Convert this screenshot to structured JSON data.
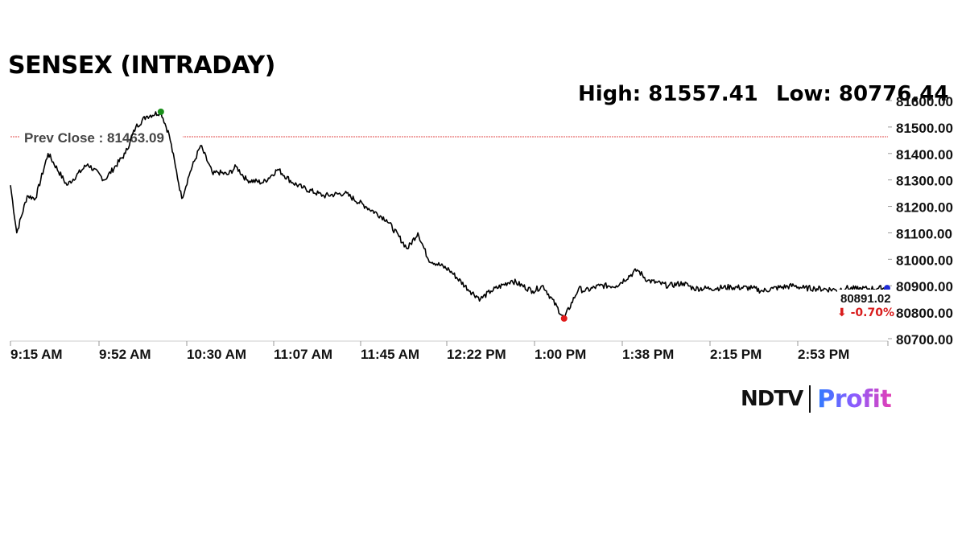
{
  "title": "SENSEX (INTRADAY)",
  "stats": {
    "high": "High: 81557.41",
    "low": "Low: 80776.44"
  },
  "prev_close_label": "Prev Close : 81463.09",
  "last": {
    "value": "80891.02",
    "change": "⬇ -0.70%"
  },
  "brand": {
    "ndtv": "NDTV",
    "profit": "Profit"
  },
  "colors": {
    "line": "#000000",
    "prev_close": "#e24a4a",
    "high_dot": "#1a8f1a",
    "low_dot": "#e01b1b",
    "last_dot": "#1f2bd6",
    "change": "#d91c1c"
  },
  "chart_data": {
    "type": "line",
    "x_ticks": [
      "9:15 AM",
      "9:52 AM",
      "10:30 AM",
      "11:07 AM",
      "11:45 AM",
      "12:22 PM",
      "1:00 PM",
      "1:38 PM",
      "2:15 PM",
      "2:53 PM"
    ],
    "y_ticks": [
      "81600.00",
      "81500.00",
      "81400.00",
      "81300.00",
      "81200.00",
      "81100.00",
      "81000.00",
      "80900.00",
      "80800.00",
      "80700.00"
    ],
    "ylim": [
      80700,
      81600
    ],
    "x_minutes": [
      0,
      3,
      8,
      12,
      18,
      27,
      37,
      45,
      55,
      60,
      65,
      72,
      76,
      79,
      82,
      86,
      91,
      97,
      99,
      104,
      108,
      113,
      121,
      128,
      135,
      140,
      150,
      160,
      170,
      180,
      190,
      195,
      200,
      210,
      220,
      225,
      230,
      240,
      250,
      255,
      265,
      272,
      275,
      282,
      290,
      300,
      305,
      315,
      322,
      327,
      335,
      345,
      355,
      360,
      365,
      375,
      380,
      385,
      395,
      400,
      405,
      410,
      415,
      420
    ],
    "values": [
      81280,
      81100,
      81240,
      81230,
      81400,
      81280,
      81360,
      81300,
      81400,
      81500,
      81540,
      81557,
      81470,
      81350,
      81230,
      81330,
      81430,
      81320,
      81330,
      81320,
      81350,
      81300,
      81290,
      81340,
      81290,
      81270,
      81240,
      81250,
      81200,
      81150,
      81040,
      81100,
      81000,
      80960,
      80880,
      80850,
      80880,
      80920,
      80880,
      80900,
      80776,
      80890,
      80880,
      80900,
      80900,
      80960,
      80920,
      80900,
      80910,
      80890,
      80890,
      80895,
      80891,
      80880,
      80890,
      80900,
      80891,
      80890,
      80885,
      80891,
      80888,
      80889,
      80890,
      80891
    ],
    "prev_close": 81463.09,
    "high": {
      "x": 72,
      "value": 81557.41
    },
    "low": {
      "x": 265,
      "value": 80776.44
    },
    "last": {
      "x": 378,
      "value": 80891.02
    }
  }
}
